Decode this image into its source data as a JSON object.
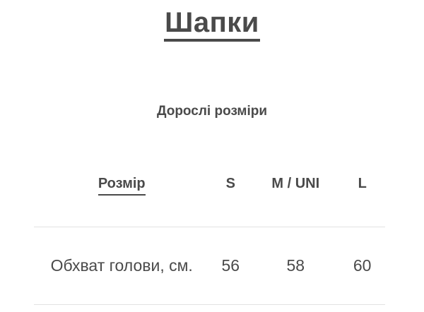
{
  "page": {
    "title": "Шапки",
    "subtitle": "Дорослі розміри"
  },
  "size_table": {
    "columns": [
      "Розмір",
      "S",
      "M / UNI",
      "L"
    ],
    "rows": [
      {
        "label": "Обхват голови, см.",
        "values": [
          "56",
          "58",
          "60"
        ]
      }
    ]
  },
  "colors": {
    "text": "#4a4a4a",
    "divider": "#e2e2e2",
    "background": "#ffffff"
  }
}
